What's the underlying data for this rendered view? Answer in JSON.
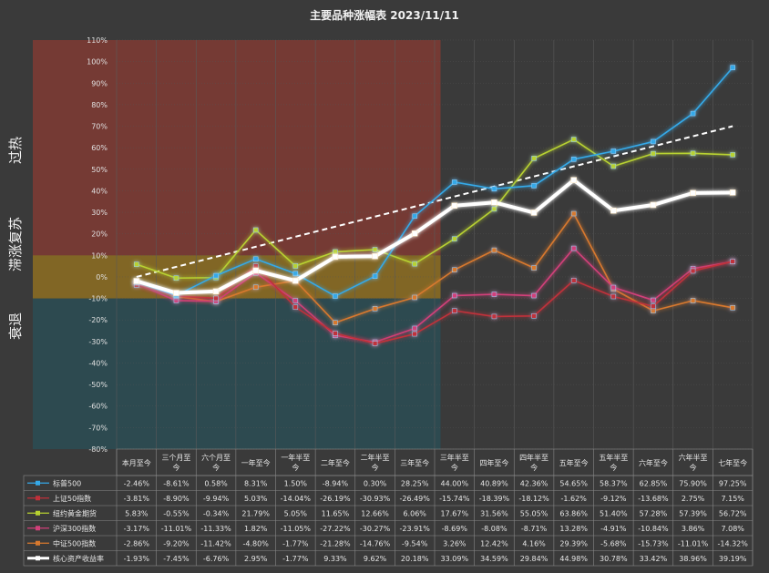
{
  "chart_data": {
    "type": "line",
    "title": "主要品种涨幅表  2023/11/11",
    "ylim": [
      -80,
      110
    ],
    "y_step": 10,
    "y_suffix": "%",
    "categories": [
      "本月至今",
      "三个月至今",
      "六个月至今",
      "一年至今",
      "一年半至今",
      "二年至今",
      "二年半至今",
      "三年至今",
      "三年半至今",
      "四年至今",
      "四年半至今",
      "五年至今",
      "五年半至今",
      "六年至今",
      "六年半至今",
      "七年至今"
    ],
    "zones": [
      {
        "label": "过热",
        "from": -10,
        "to": 110,
        "color": "#b03a2e",
        "x_until_index": 8
      },
      {
        "label": "滞涨复苏",
        "from": -10,
        "to": 10,
        "color": "#8a8a1a",
        "x_until_index": 8
      },
      {
        "label": "衰退",
        "from": -80,
        "to": -10,
        "color": "#1f5a66",
        "x_until_index": 8
      }
    ],
    "trend_line": {
      "from": [
        0,
        0
      ],
      "to": [
        15,
        70
      ],
      "color": "#ffffff"
    },
    "series": [
      {
        "name": "标普500",
        "color": "#35a9e8",
        "values": [
          -2.46,
          -8.61,
          0.58,
          8.31,
          1.5,
          -8.94,
          0.3,
          28.25,
          44.0,
          40.89,
          42.36,
          54.65,
          58.37,
          62.85,
          75.9,
          97.25
        ],
        "labels": [
          "-2.46%",
          "-8.61%",
          "0.58%",
          "8.31%",
          "1.50%",
          "-8.94%",
          "0.30%",
          "28.25%",
          "44.00%",
          "40.89%",
          "42.36%",
          "54.65%",
          "58.37%",
          "62.85%",
          "75.90%",
          "97.25%"
        ]
      },
      {
        "name": "上证50指数",
        "color": "#c0303a",
        "values": [
          -3.81,
          -8.9,
          -9.94,
          5.03,
          -14.04,
          -26.19,
          -30.93,
          -26.49,
          -15.74,
          -18.39,
          -18.12,
          -1.62,
          -9.12,
          -13.68,
          2.75,
          7.15
        ],
        "labels": [
          "-3.81%",
          "-8.90%",
          "-9.94%",
          "5.03%",
          "-14.04%",
          "-26.19%",
          "-30.93%",
          "-26.49%",
          "-15.74%",
          "-18.39%",
          "-18.12%",
          "-1.62%",
          "-9.12%",
          "-13.68%",
          "2.75%",
          "7.15%"
        ]
      },
      {
        "name": "纽约黄金期货",
        "color": "#b8d230",
        "values": [
          5.83,
          -0.55,
          -0.34,
          21.79,
          5.05,
          11.65,
          12.66,
          6.06,
          17.67,
          31.56,
          55.05,
          63.86,
          51.4,
          57.28,
          57.39,
          56.72
        ],
        "labels": [
          "5.83%",
          "-0.55%",
          "-0.34%",
          "21.79%",
          "5.05%",
          "11.65%",
          "12.66%",
          "6.06%",
          "17.67%",
          "31.56%",
          "55.05%",
          "63.86%",
          "51.40%",
          "57.28%",
          "57.39%",
          "56.72%"
        ]
      },
      {
        "name": "沪深300指数",
        "color": "#d2407a",
        "values": [
          -3.17,
          -11.01,
          -11.33,
          1.82,
          -11.05,
          -27.22,
          -30.27,
          -23.91,
          -8.69,
          -8.08,
          -8.71,
          13.28,
          -4.91,
          -10.84,
          3.86,
          7.08
        ],
        "labels": [
          "-3.17%",
          "-11.01%",
          "-11.33%",
          "1.82%",
          "-11.05%",
          "-27.22%",
          "-30.27%",
          "-23.91%",
          "-8.69%",
          "-8.08%",
          "-8.71%",
          "13.28%",
          "-4.91%",
          "-10.84%",
          "3.86%",
          "7.08%"
        ]
      },
      {
        "name": "中证500指数",
        "color": "#d8792e",
        "values": [
          -2.86,
          -9.2,
          -11.42,
          -4.8,
          -1.77,
          -21.28,
          -14.76,
          -9.54,
          3.26,
          12.42,
          4.16,
          29.39,
          -5.68,
          -15.73,
          -11.01,
          -14.32
        ],
        "labels": [
          "-2.86%",
          "-9.20%",
          "-11.42%",
          "-4.80%",
          "-1.77%",
          "-21.28%",
          "-14.76%",
          "-9.54%",
          "3.26%",
          "12.42%",
          "4.16%",
          "29.39%",
          "-5.68%",
          "-15.73%",
          "-11.01%",
          "-14.32%"
        ]
      },
      {
        "name": "核心资产收益率",
        "color": "#ffffff",
        "thick": true,
        "values": [
          -1.93,
          -7.45,
          -6.76,
          2.95,
          -1.77,
          9.33,
          9.62,
          20.18,
          33.09,
          34.59,
          29.84,
          44.98,
          30.78,
          33.42,
          38.96,
          39.19
        ],
        "labels": [
          "-1.93%",
          "-7.45%",
          "-6.76%",
          "2.95%",
          "-1.77%",
          "9.33%",
          "9.62%",
          "20.18%",
          "33.09%",
          "34.59%",
          "29.84%",
          "44.98%",
          "30.78%",
          "33.42%",
          "38.96%",
          "39.19%"
        ]
      }
    ]
  }
}
